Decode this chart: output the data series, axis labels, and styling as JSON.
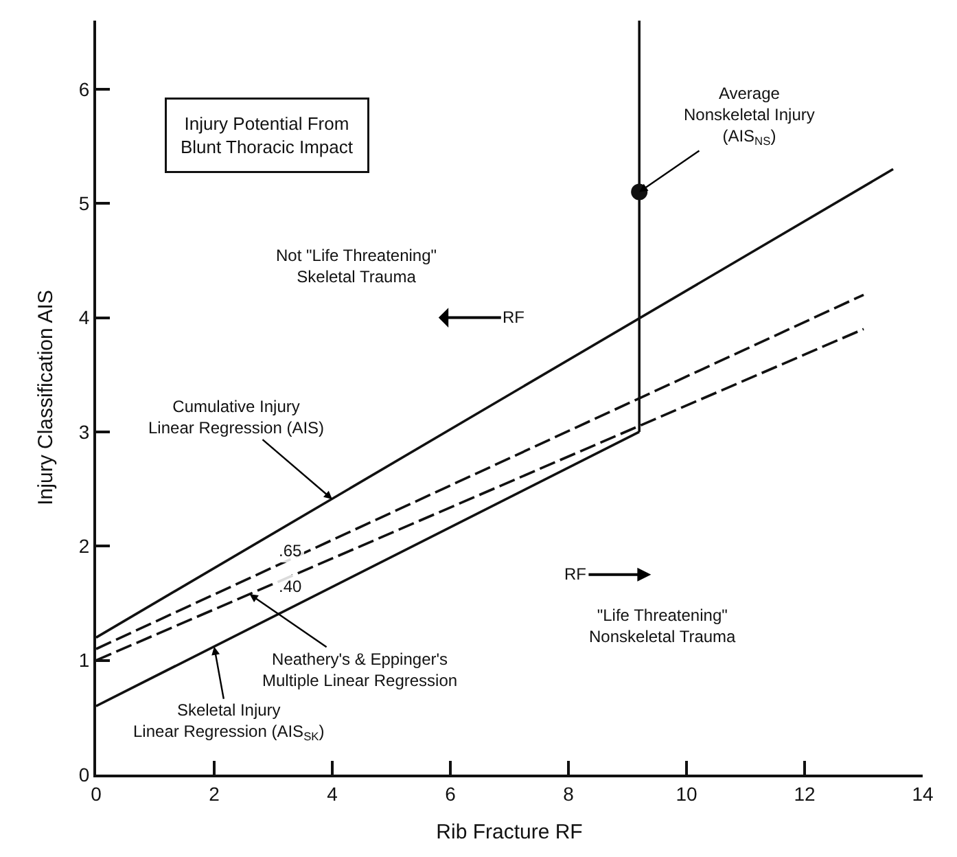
{
  "chart_data": {
    "type": "line",
    "title": "Injury Potential From\nBlunt Thoracic Impact",
    "xlabel": "Rib Fracture RF",
    "ylabel": "Injury Classification AIS",
    "xlim": [
      0,
      14
    ],
    "ylim": [
      0,
      6.6
    ],
    "xticks": [
      0,
      2,
      4,
      6,
      8,
      10,
      12,
      14
    ],
    "yticks": [
      0,
      1,
      2,
      3,
      4,
      5,
      6
    ],
    "marker": "none",
    "series": [
      {
        "color": "#111111",
        "x": [
          0,
          13.5
        ],
        "values": [
          1.2,
          5.3
        ],
        "line_style": "solid"
      },
      {
        "color": "#111111",
        "x": [
          0,
          13
        ],
        "values": [
          1.1,
          4.2
        ],
        "line_style": "dashed"
      },
      {
        "color": "#111111",
        "x": [
          0,
          13
        ],
        "values": [
          1.0,
          3.9
        ],
        "line_style": "dashed"
      },
      {
        "color": "#111111",
        "x": [
          0,
          9.2
        ],
        "values": [
          0.6,
          3.0
        ],
        "line_style": "solid"
      },
      {
        "color": "#111111",
        "x": [
          9.2,
          9.2
        ],
        "values": [
          3.0,
          6.6
        ],
        "line_style": "solid"
      },
      {
        "type": "scatter",
        "color": "#111111",
        "x": [
          9.2
        ],
        "values": [
          5.1
        ],
        "marker": "circle"
      }
    ],
    "annotations": [
      "Not \"Life Threatening\"\nSkeletal Trauma",
      "RF",
      "RF",
      "\"Life Threatening\"\nNonskeletal Trauma",
      {
        "text": "Average\nNonskeletal Injury\n(AIS$_{NS}$)",
        "x": 9.2,
        "y": 5.1
      },
      {
        "text": "Cumulative Injury\nLinear Regression (AIS)",
        "x": 4.0,
        "y": 2.41
      },
      {
        "text": ".65",
        "x": 3.0,
        "y": 1.82
      },
      {
        "text": ".40",
        "x": 3.0,
        "y": 1.67
      },
      {
        "text": "Neathery's & Eppinger's\nMultiple Linear Regression",
        "x": 2.6,
        "y": 1.58
      },
      {
        "text": "Skeletal Injury\nLinear Regression (AIS$_{SK}$)",
        "x": 2.0,
        "y": 1.12
      }
    ]
  }
}
